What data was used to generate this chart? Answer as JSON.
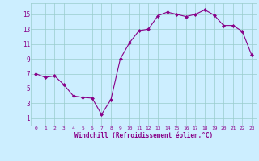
{
  "x": [
    0,
    1,
    2,
    3,
    4,
    5,
    6,
    7,
    8,
    9,
    10,
    11,
    12,
    13,
    14,
    15,
    16,
    17,
    18,
    19,
    20,
    21,
    22,
    23
  ],
  "y": [
    7.0,
    6.5,
    6.7,
    5.5,
    4.0,
    3.8,
    3.7,
    1.5,
    3.5,
    9.0,
    11.2,
    12.8,
    13.0,
    14.8,
    15.3,
    15.0,
    14.7,
    15.0,
    15.6,
    14.9,
    13.5,
    13.5,
    12.7,
    9.5
  ],
  "line_color": "#880088",
  "marker": "D",
  "marker_size": 2,
  "bg_color": "#cceeff",
  "grid_color": "#99cccc",
  "xlabel": "Windchill (Refroidissement éolien,°C)",
  "xlabel_color": "#880088",
  "yticks": [
    1,
    3,
    5,
    7,
    9,
    11,
    13,
    15
  ],
  "xticks": [
    0,
    1,
    2,
    3,
    4,
    5,
    6,
    7,
    8,
    9,
    10,
    11,
    12,
    13,
    14,
    15,
    16,
    17,
    18,
    19,
    20,
    21,
    22,
    23
  ],
  "ylim": [
    0,
    16.5
  ],
  "xlim": [
    -0.5,
    23.5
  ],
  "tick_label_color": "#880088",
  "spine_color": "#99cccc"
}
